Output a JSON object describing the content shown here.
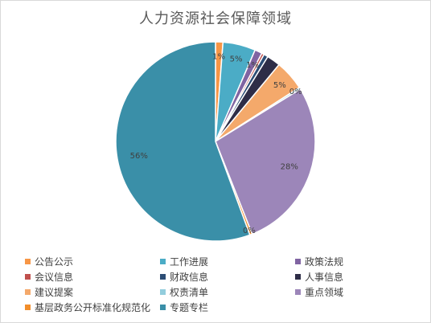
{
  "chart_data": {
    "type": "pie",
    "title": "人力资源社会保障领域",
    "slices": [
      {
        "name": "公告公示",
        "value": 1.2,
        "label": "1%",
        "color": "#f79646"
      },
      {
        "name": "工作进展",
        "value": 5.3,
        "label": "5%",
        "color": "#4bacc6"
      },
      {
        "name": "政策法规",
        "value": 1.2,
        "label": "1%",
        "color": "#8064a2"
      },
      {
        "name": "会议信息",
        "value": 0.4,
        "label": "",
        "color": "#c0504d"
      },
      {
        "name": "财政信息",
        "value": 0.7,
        "label": "",
        "color": "#2c4d75"
      },
      {
        "name": "人事信息",
        "value": 2.2,
        "label": "",
        "color": "#2e2d47"
      },
      {
        "name": "建议提案",
        "value": 4.9,
        "label": "5%",
        "color": "#f4a96b"
      },
      {
        "name": "权责清单",
        "value": 0.3,
        "label": "0%",
        "color": "#93cddd"
      },
      {
        "name": "重点领域",
        "value": 27.8,
        "label": "28%",
        "color": "#9c86b9"
      },
      {
        "name": "基层政务公开标准化规范化",
        "value": 0.4,
        "label": "0%",
        "color": "#f28e2b"
      },
      {
        "name": "专题专栏",
        "value": 55.6,
        "label": "56%",
        "color": "#3a8fa8"
      }
    ]
  }
}
